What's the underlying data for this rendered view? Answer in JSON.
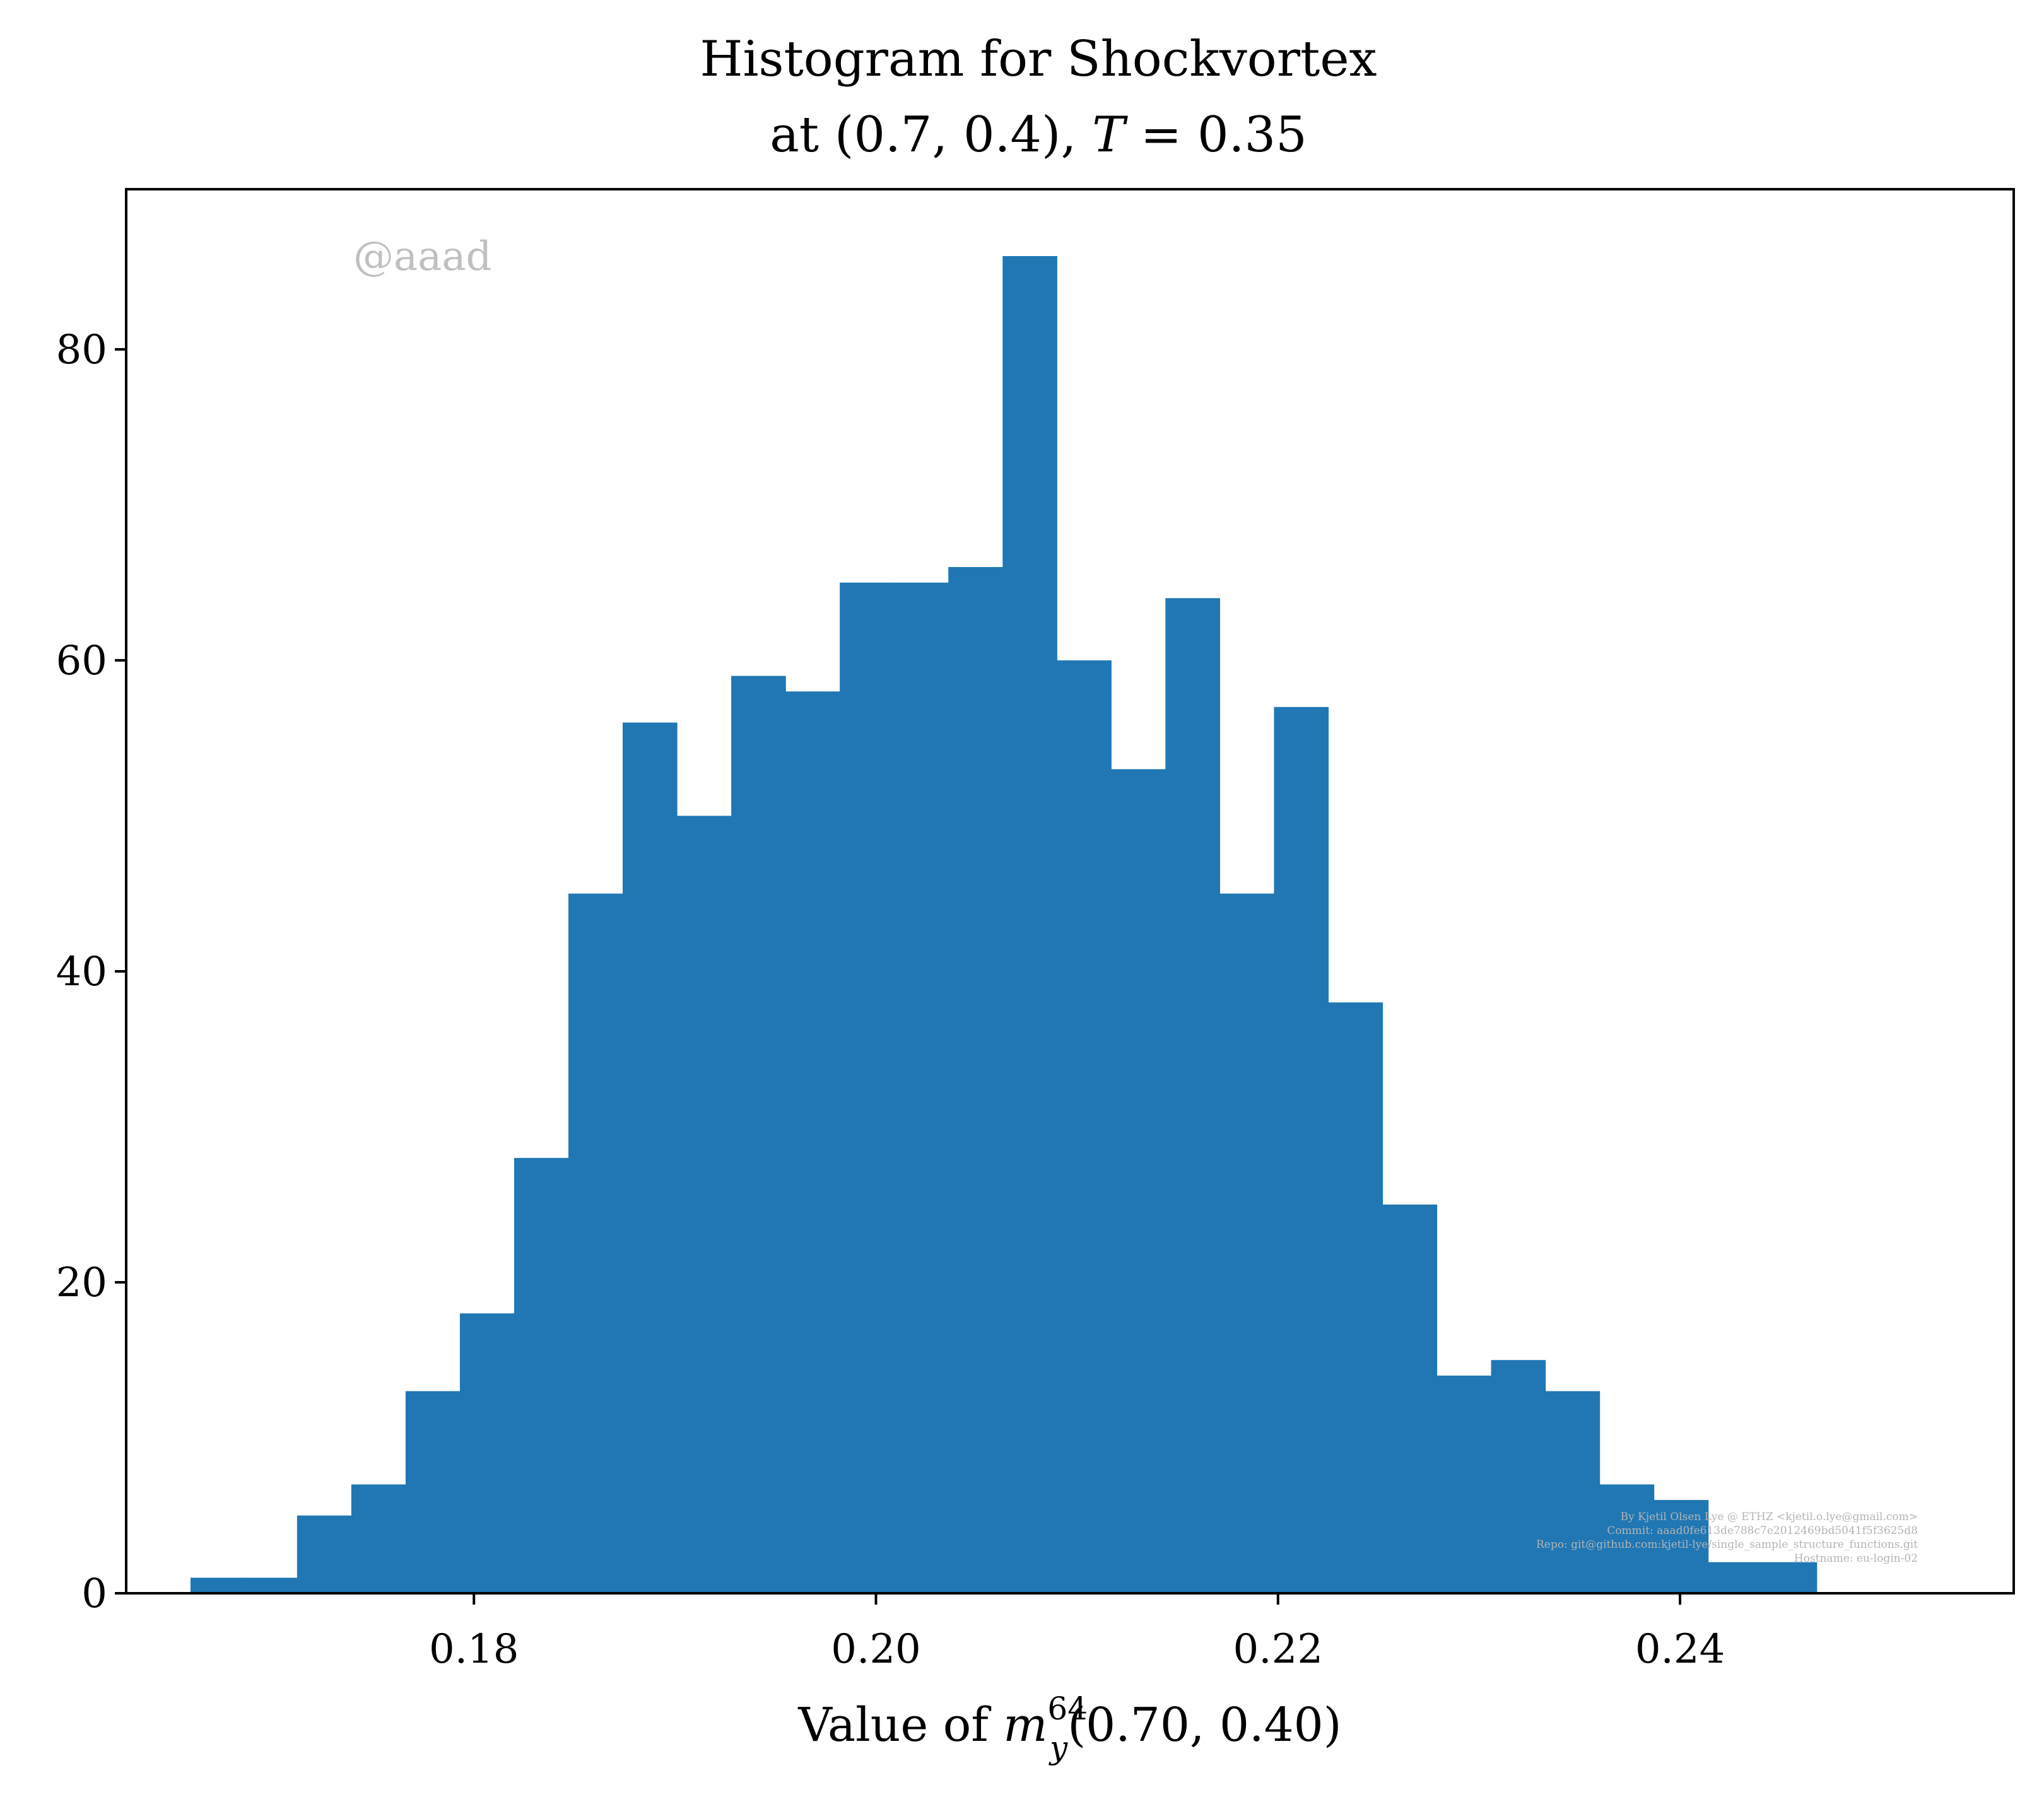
{
  "chart_data": {
    "type": "bar",
    "title_line1": "Histogram for Shockvortex",
    "title_line2_prefix": "at (0.7, 0.4), ",
    "title_line2_T": "T",
    "title_line2_suffix": " = 0.35",
    "xlabel_prefix": "Value of ",
    "xlabel_m": "m",
    "xlabel_sup": "64",
    "xlabel_sub": "y",
    "xlabel_suffix": "(0.70, 0.40)",
    "ylabel": "",
    "watermark": "@aaad",
    "footer_lines": [
      "By Kjetil Olsen Lye @ ETHZ <kjetil.o.lye@gmail.com>",
      "Commit: aaad0fe613de788c7e2012469bd5041f5f3625d8",
      "Repo: git@github.com:kjetil-lye/single_sample_structure_functions.git",
      "Hostname: eu-login-02"
    ],
    "xlim": [
      0.1627,
      0.2566
    ],
    "ylim": [
      0,
      90.3
    ],
    "xticks": [
      0.18,
      0.2,
      0.22,
      0.24
    ],
    "xtick_labels": [
      "0.18",
      "0.20",
      "0.22",
      "0.24"
    ],
    "yticks": [
      0,
      20,
      40,
      60,
      80
    ],
    "ytick_labels": [
      "0",
      "20",
      "40",
      "60",
      "80"
    ],
    "bin_edges": [
      0.1659,
      0.1686,
      0.1712,
      0.1739,
      0.1766,
      0.1793,
      0.182,
      0.1847,
      0.1874,
      0.1901,
      0.1928,
      0.1955,
      0.1982,
      0.2009,
      0.2036,
      0.2063,
      0.209,
      0.2117,
      0.2144,
      0.2171,
      0.2198,
      0.2225,
      0.2252,
      0.2279,
      0.2306,
      0.2333,
      0.236,
      0.2387,
      0.2414,
      0.2441,
      0.2468
    ],
    "counts": [
      1,
      1,
      5,
      7,
      13,
      18,
      28,
      45,
      56,
      50,
      59,
      58,
      65,
      65,
      66,
      86,
      60,
      53,
      64,
      45,
      57,
      38,
      25,
      14,
      15,
      13,
      7,
      6,
      2,
      2
    ],
    "bar_color": "#2077b4",
    "grid": false,
    "legend": "none"
  }
}
